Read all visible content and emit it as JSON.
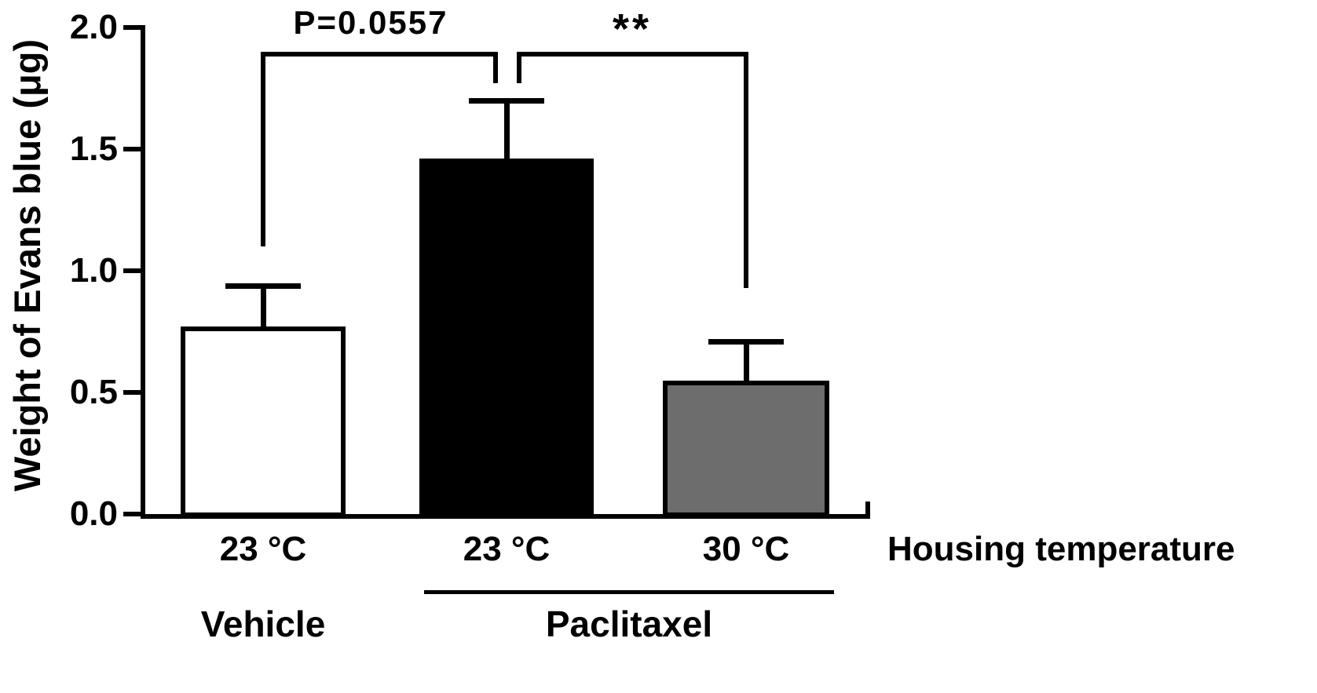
{
  "chart_data": {
    "type": "bar",
    "title": "",
    "xlabel": "",
    "ylabel": "Weight of Evans blue (μg)",
    "ylim": [
      0.0,
      2.0
    ],
    "yticks": [
      0.0,
      0.5,
      1.0,
      1.5,
      2.0
    ],
    "ytick_labels": [
      "0.0",
      "0.5",
      "1.0",
      "1.5",
      "2.0"
    ],
    "x_axis_annotation": "Housing temperature",
    "categories": [
      "23 °C",
      "23 °C",
      "30 °C"
    ],
    "groups": [
      {
        "label": "Vehicle",
        "bar_indexes": [
          0
        ]
      },
      {
        "label": "Paclitaxel",
        "bar_indexes": [
          1,
          2
        ]
      }
    ],
    "bars": [
      {
        "group": "Vehicle",
        "category": "23 °C",
        "value": 0.77,
        "error": 0.17,
        "fill": "#ffffff"
      },
      {
        "group": "Paclitaxel",
        "category": "23 °C",
        "value": 1.46,
        "error": 0.24,
        "fill": "#000000"
      },
      {
        "group": "Paclitaxel",
        "category": "30 °C",
        "value": 0.55,
        "error": 0.16,
        "fill": "#6d6d6d"
      }
    ],
    "annotations": [
      {
        "type": "significance-bracket",
        "label": "P=0.0557",
        "from_bar": 0,
        "to_bar": 1
      },
      {
        "type": "significance-bracket",
        "label": "**",
        "from_bar": 1,
        "to_bar": 2
      }
    ],
    "legend": null,
    "grid": false
  },
  "colors": {
    "axis": "#000000",
    "background": "#ffffff",
    "vehicle_bar_fill": "#ffffff",
    "paclitaxel_23_bar_fill": "#000000",
    "paclitaxel_30_bar_fill": "#6d6d6d"
  }
}
